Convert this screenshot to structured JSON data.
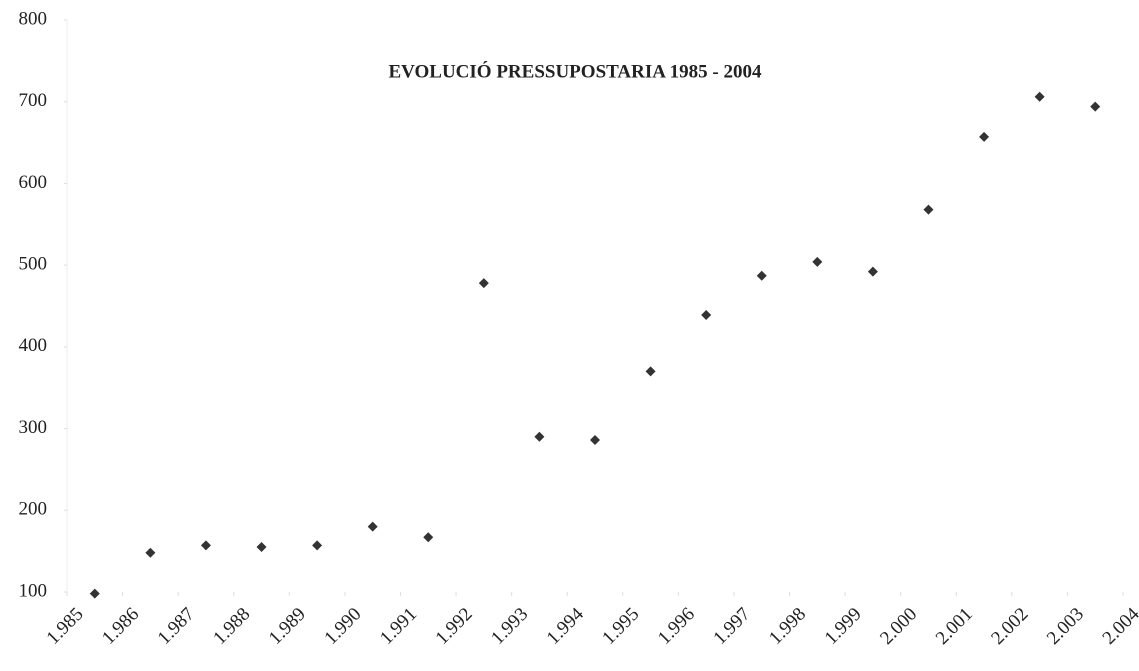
{
  "chart_data": {
    "type": "scatter",
    "title": "EVOLUCIÓ PRESSUPOSTARIA 1985 - 2004",
    "x": [
      1985.5,
      1986.5,
      1987.5,
      1988.5,
      1989.5,
      1990.5,
      1991.5,
      1992.5,
      1993.5,
      1994.5,
      1995.5,
      1996.5,
      1997.5,
      1998.5,
      1999.5,
      2000.5,
      2001.5,
      2002.5,
      2003.5
    ],
    "values": [
      98,
      148,
      157,
      155,
      157,
      180,
      167,
      478,
      290,
      286,
      370,
      439,
      487,
      504,
      492,
      568,
      657,
      706,
      694
    ],
    "color": "#333333",
    "xlim": [
      1985,
      2004
    ],
    "xticks": [
      {
        "value": 1985,
        "label": "1.985"
      },
      {
        "value": 1986,
        "label": "1.986"
      },
      {
        "value": 1987,
        "label": "1.987"
      },
      {
        "value": 1988,
        "label": "1.988"
      },
      {
        "value": 1989,
        "label": "1.989"
      },
      {
        "value": 1990,
        "label": "1.990"
      },
      {
        "value": 1991,
        "label": "1.991"
      },
      {
        "value": 1992,
        "label": "1.992"
      },
      {
        "value": 1993,
        "label": "1.993"
      },
      {
        "value": 1994,
        "label": "1.994"
      },
      {
        "value": 1995,
        "label": "1.995"
      },
      {
        "value": 1996,
        "label": "1.996"
      },
      {
        "value": 1997,
        "label": "1.997"
      },
      {
        "value": 1998,
        "label": "1.998"
      },
      {
        "value": 1999,
        "label": "1.999"
      },
      {
        "value": 2000,
        "label": "2.000"
      },
      {
        "value": 2001,
        "label": "2.001"
      },
      {
        "value": 2002,
        "label": "2.002"
      },
      {
        "value": 2003,
        "label": "2.003"
      },
      {
        "value": 2004,
        "label": "2.004"
      }
    ],
    "ylim": [
      100,
      800
    ],
    "yticks": [
      100,
      200,
      300,
      400,
      500,
      600,
      700,
      800
    ]
  }
}
